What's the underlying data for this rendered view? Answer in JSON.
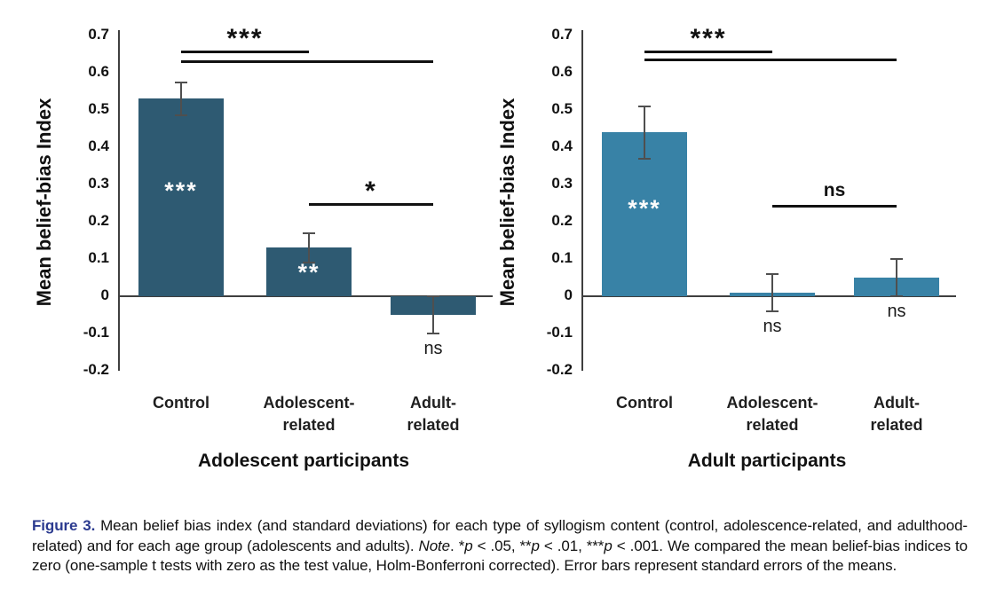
{
  "chart_data": [
    {
      "type": "bar",
      "title": "Adolescent participants",
      "ylabel": "Mean belief-bias Index",
      "ylim": [
        -0.2,
        0.7
      ],
      "ytick_labels": [
        "0.7",
        "0.6",
        "0.5",
        "0.4",
        "0.3",
        "0.2",
        "0.1",
        "0",
        "-0.1",
        "-0.2"
      ],
      "grid": false,
      "legend": "none",
      "categories": [
        [
          "Control"
        ],
        [
          "Adolescent-",
          "related"
        ],
        [
          "Adult-",
          "related"
        ]
      ],
      "values": [
        0.53,
        0.13,
        -0.05
      ],
      "errors": [
        0.045,
        0.04,
        0.05
      ],
      "bar_color": "#2e5a72",
      "in_bar_significance": [
        "***",
        "**",
        ""
      ],
      "below_bar_labels": [
        "",
        "",
        "ns"
      ],
      "comparisons": [
        {
          "from": 0,
          "to": 1,
          "y": 0.655,
          "label": "***"
        },
        {
          "from": 0,
          "to": 2,
          "y": 0.628,
          "label": ""
        },
        {
          "from": 1,
          "to": 2,
          "y": 0.245,
          "label": "*"
        }
      ]
    },
    {
      "type": "bar",
      "title": "Adult participants",
      "ylabel": "Mean belief-bias Index",
      "ylim": [
        -0.2,
        0.7
      ],
      "ytick_labels": [
        "0.7",
        "0.6",
        "0.5",
        "0.4",
        "0.3",
        "0.2",
        "0.1",
        "0",
        "-0.1",
        "-0.2"
      ],
      "grid": false,
      "legend": "none",
      "categories": [
        [
          "Control"
        ],
        [
          "Adolescent-",
          "related"
        ],
        [
          "Adult-",
          "related"
        ]
      ],
      "values": [
        0.44,
        0.01,
        0.05
      ],
      "errors": [
        0.07,
        0.05,
        0.05
      ],
      "bar_color": "#3882a6",
      "in_bar_significance": [
        "***",
        "",
        ""
      ],
      "below_bar_labels": [
        "",
        "ns",
        "ns"
      ],
      "comparisons": [
        {
          "from": 0,
          "to": 1,
          "y": 0.655,
          "label": "***"
        },
        {
          "from": 0,
          "to": 2,
          "y": 0.633,
          "label": ""
        },
        {
          "from": 1,
          "to": 2,
          "y": 0.24,
          "label": "ns"
        }
      ]
    }
  ],
  "caption": {
    "segments": [
      {
        "text": "Figure 3.",
        "style": "label"
      },
      {
        "text": " Mean belief bias index (and standard deviations) for each type of syllogism content (control, adolescence-related, and adulthood-related) and for each age group (adolescents and adults). ",
        "style": "plain"
      },
      {
        "text": "Note",
        "style": "italic"
      },
      {
        "text": ". *",
        "style": "plain"
      },
      {
        "text": "p",
        "style": "italic"
      },
      {
        "text": " < .05, **",
        "style": "plain"
      },
      {
        "text": "p",
        "style": "italic"
      },
      {
        "text": " < .01, ***",
        "style": "plain"
      },
      {
        "text": "p",
        "style": "italic"
      },
      {
        "text": " < .001. We compared the mean belief-bias indices to zero (one-sample t tests with zero as the test value, Holm-Bonferroni corrected). Error bars represent standard errors of the means.",
        "style": "plain"
      }
    ]
  }
}
